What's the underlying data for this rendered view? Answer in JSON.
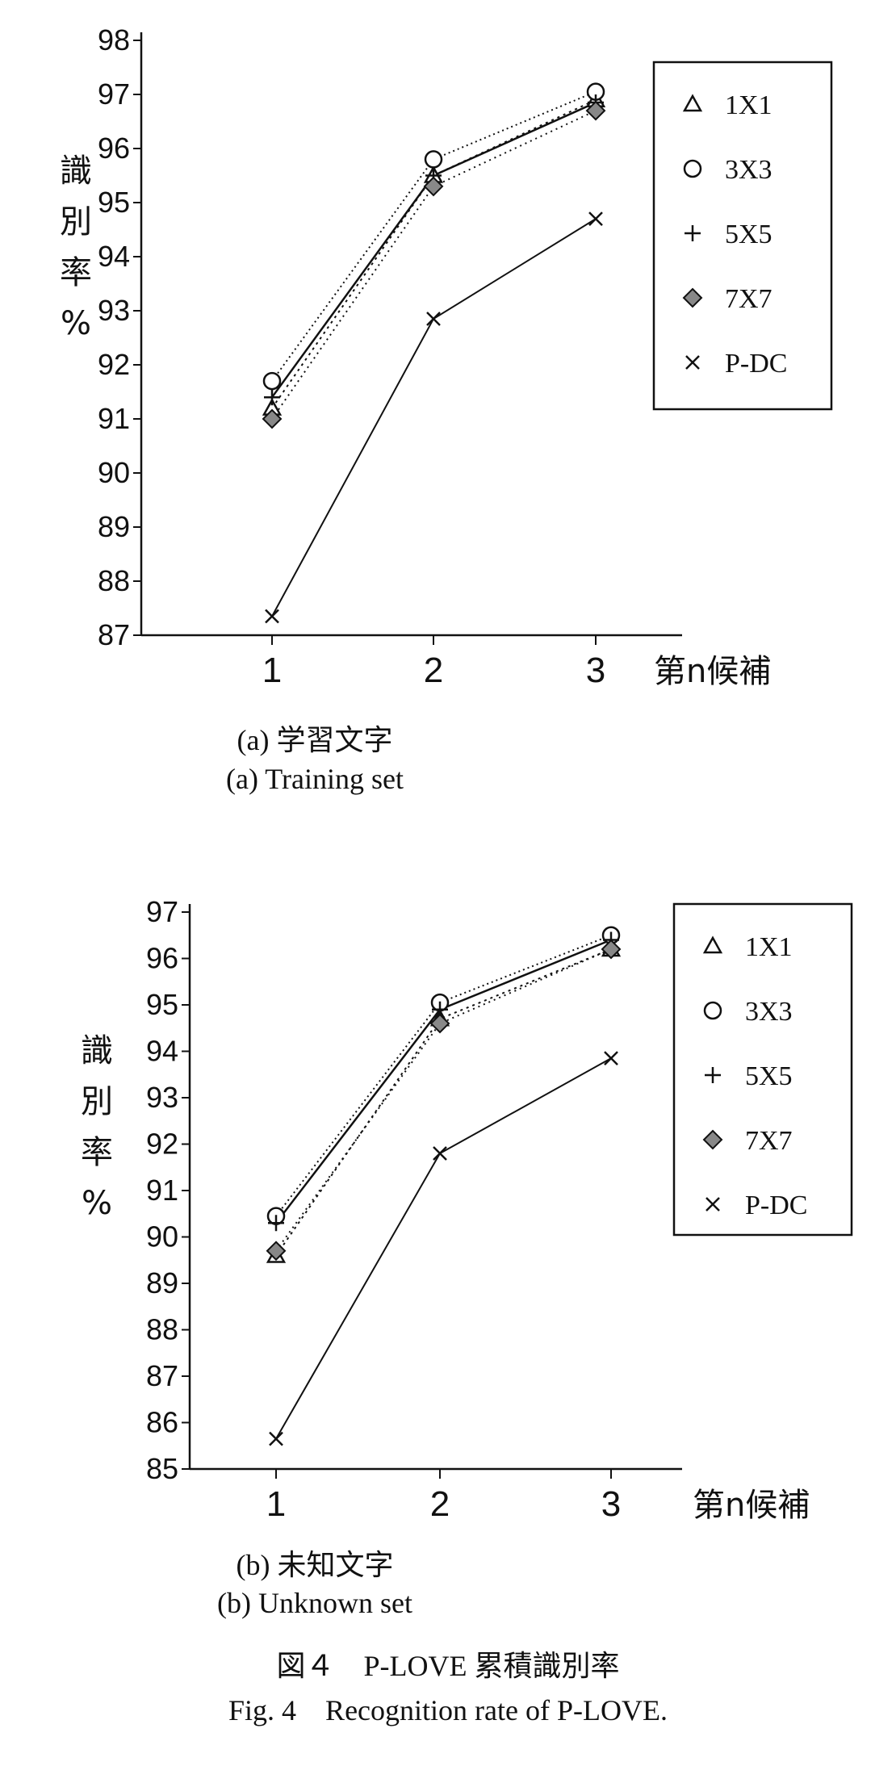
{
  "chart_data": [
    {
      "type": "line",
      "categories": [
        "1",
        "2",
        "3"
      ],
      "ylim": [
        87,
        98
      ],
      "yticks": [
        "87",
        "88",
        "89",
        "90",
        "91",
        "92",
        "93",
        "94",
        "95",
        "96",
        "97",
        "98"
      ],
      "ylabel_chars": [
        "識",
        "別",
        "率",
        "%"
      ],
      "xlabel": "第n候補",
      "legend_position": "top-right",
      "series": [
        {
          "name": "1X1",
          "values": [
            91.2,
            95.5,
            96.9
          ]
        },
        {
          "name": "3X3",
          "values": [
            91.7,
            95.8,
            97.05
          ]
        },
        {
          "name": "5X5",
          "values": [
            91.4,
            95.5,
            96.85
          ]
        },
        {
          "name": "7X7",
          "values": [
            91.0,
            95.3,
            96.7
          ]
        },
        {
          "name": "P-DC",
          "values": [
            87.35,
            92.85,
            94.7
          ]
        }
      ],
      "caption_ja": "(a) 学習文字",
      "caption_en": "(a) Training set"
    },
    {
      "type": "line",
      "categories": [
        "1",
        "2",
        "3"
      ],
      "ylim": [
        85,
        97
      ],
      "yticks": [
        "85",
        "86",
        "87",
        "88",
        "89",
        "90",
        "91",
        "92",
        "93",
        "94",
        "95",
        "96",
        "97"
      ],
      "ylabel_chars": [
        "識",
        "別",
        "率",
        "%"
      ],
      "xlabel": "第n候補",
      "legend_position": "top-right",
      "series": [
        {
          "name": "1X1",
          "values": [
            89.6,
            94.7,
            96.2
          ]
        },
        {
          "name": "3X3",
          "values": [
            90.45,
            95.05,
            96.5
          ]
        },
        {
          "name": "5X5",
          "values": [
            90.3,
            94.9,
            96.4
          ]
        },
        {
          "name": "7X7",
          "values": [
            89.7,
            94.6,
            96.2
          ]
        },
        {
          "name": "P-DC",
          "values": [
            85.65,
            91.8,
            93.85
          ]
        }
      ],
      "caption_ja": "(b) 未知文字",
      "caption_en": "(b) Unknown set"
    }
  ],
  "figure": {
    "caption_ja": "図４　P-LOVE 累積識別率",
    "caption_en": "Fig. 4　Recognition rate of P-LOVE."
  },
  "colors": {
    "ink": "#111111",
    "diamond_fill": "#888888"
  }
}
